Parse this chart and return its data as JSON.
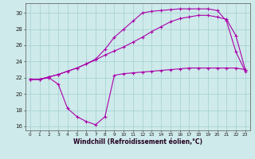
{
  "xlabel": "Windchill (Refroidissement éolien,°C)",
  "bg_color": "#ceeaea",
  "line_color": "#aa00aa",
  "grid_color": "#aad4d4",
  "xlim": [
    -0.5,
    23.5
  ],
  "ylim": [
    15.5,
    31.2
  ],
  "yticks": [
    16,
    18,
    20,
    22,
    24,
    26,
    28,
    30
  ],
  "xticks": [
    0,
    1,
    2,
    3,
    4,
    5,
    6,
    7,
    8,
    9,
    10,
    11,
    12,
    13,
    14,
    15,
    16,
    17,
    18,
    19,
    20,
    21,
    22,
    23
  ],
  "line1_x": [
    0,
    1,
    2,
    3,
    4,
    5,
    6,
    7,
    8,
    9,
    10,
    11,
    12,
    13,
    14,
    15,
    16,
    17,
    18,
    19,
    20,
    21,
    22,
    23
  ],
  "line1_y": [
    21.8,
    21.8,
    22.1,
    22.4,
    22.8,
    23.2,
    23.7,
    24.2,
    24.8,
    25.3,
    25.8,
    26.4,
    27.0,
    27.7,
    28.3,
    28.9,
    29.3,
    29.5,
    29.7,
    29.7,
    29.5,
    29.2,
    27.2,
    23.0
  ],
  "line2_x": [
    0,
    1,
    2,
    3,
    4,
    5,
    6,
    7,
    8,
    9,
    10,
    11,
    12,
    13,
    14,
    15,
    16,
    17,
    18,
    19,
    20,
    21,
    22,
    23
  ],
  "line2_y": [
    21.8,
    21.8,
    22.1,
    22.4,
    22.8,
    23.2,
    23.7,
    24.3,
    25.5,
    27.0,
    28.0,
    29.0,
    30.0,
    30.2,
    30.3,
    30.4,
    30.5,
    30.5,
    30.5,
    30.5,
    30.3,
    29.0,
    25.2,
    22.8
  ],
  "line3_x": [
    0,
    1,
    2,
    3,
    4,
    5,
    6,
    7,
    8,
    9,
    10,
    11,
    12,
    13,
    14,
    15,
    16,
    17,
    18,
    19,
    20,
    21,
    22,
    23
  ],
  "line3_y": [
    21.8,
    21.8,
    22.0,
    21.2,
    18.2,
    17.2,
    16.6,
    16.2,
    17.2,
    22.3,
    22.5,
    22.6,
    22.7,
    22.8,
    22.9,
    23.0,
    23.1,
    23.2,
    23.2,
    23.2,
    23.2,
    23.2,
    23.2,
    23.0
  ]
}
